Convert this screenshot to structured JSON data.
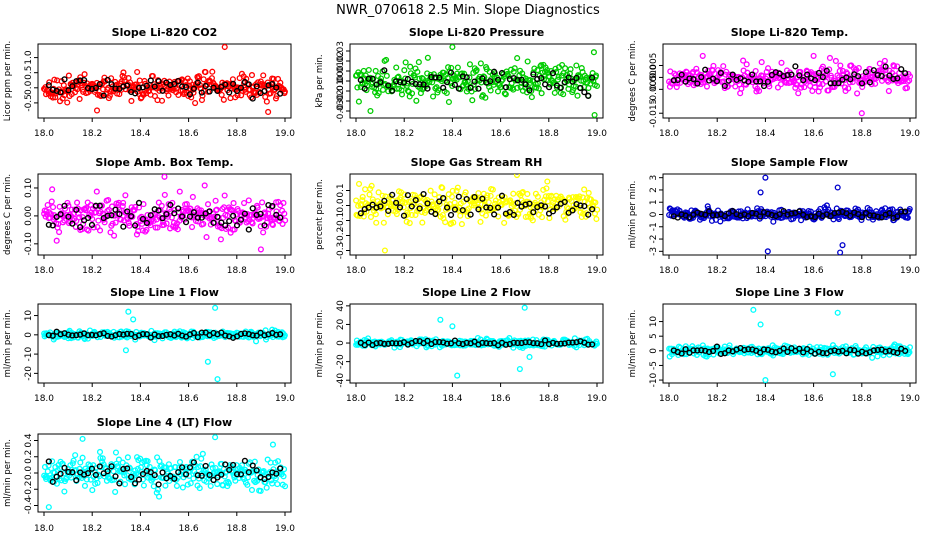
{
  "main_title": "NWR_070618  2.5 Min. Slope Diagnostics",
  "chart_data": [
    {
      "type": "scatter",
      "title": "Slope Li-820 CO2",
      "ylabel": "Licor ppm per min.",
      "xlim": [
        18.0,
        19.0
      ],
      "xticks": [
        "18.0",
        "18.2",
        "18.4",
        "18.6",
        "18.8",
        "19.0"
      ],
      "ylim": [
        -1.0,
        1.45
      ],
      "yticks": [
        {
          "v": -0.5,
          "label": "-0.5"
        },
        {
          "v": 0.0,
          "label": "0.0"
        },
        {
          "v": 0.5,
          "label": "0.5"
        },
        {
          "v": 1.0,
          "label": "1.0"
        }
      ],
      "main_color": "#ff0000",
      "black_color": "#000000",
      "spread": 0.3,
      "spikes": [
        [
          18.75,
          1.35
        ],
        [
          18.93,
          -0.8
        ],
        [
          18.22,
          -0.75
        ]
      ],
      "main_points": [],
      "black_points": []
    },
    {
      "type": "scatter",
      "title": "Slope Li-820 Pressure",
      "ylabel": "kPa per min.",
      "xlim": [
        18.0,
        19.0
      ],
      "xticks": [
        "18.0",
        "18.2",
        "18.4",
        "18.6",
        "18.8",
        "19.0"
      ],
      "ylim": [
        -0.037,
        0.037
      ],
      "yticks": [
        {
          "v": -0.03,
          "label": "-0.03"
        },
        {
          "v": -0.02,
          "label": "-0.02"
        },
        {
          "v": -0.01,
          "label": "-0.01"
        },
        {
          "v": 0.0,
          "label": "0.00"
        },
        {
          "v": 0.01,
          "label": "0.01"
        },
        {
          "v": 0.02,
          "label": "0.02"
        },
        {
          "v": 0.03,
          "label": "0.03"
        }
      ],
      "main_color": "#00cc00",
      "black_color": "#000000",
      "spread": 0.012,
      "spikes": [
        [
          18.4,
          0.034
        ],
        [
          18.99,
          -0.034
        ],
        [
          18.06,
          -0.03
        ]
      ],
      "main_points": [],
      "black_points": []
    },
    {
      "type": "scatter",
      "title": "Slope Li-820 Temp.",
      "ylabel": "degrees C per min.",
      "xlim": [
        18.0,
        19.0
      ],
      "xticks": [
        "18.0",
        "18.2",
        "18.4",
        "18.6",
        "18.8",
        "19.0"
      ],
      "ylim": [
        -0.017,
        0.014
      ],
      "yticks": [
        {
          "v": -0.015,
          "label": "-0.015"
        },
        {
          "v": -0.005,
          "label": "-0.005"
        },
        {
          "v": 0.0,
          "label": "0.000"
        },
        {
          "v": 0.005,
          "label": "0.005"
        }
      ],
      "main_color": "#ff00ff",
      "black_color": "#000000",
      "spread": 0.004,
      "spikes": [
        [
          18.8,
          -0.015
        ],
        [
          18.14,
          0.009
        ],
        [
          18.6,
          0.009
        ]
      ],
      "main_points": [],
      "black_points": []
    },
    {
      "type": "scatter",
      "title": "Slope Amb. Box Temp.",
      "ylabel": "degrees C per min.",
      "xlim": [
        18.0,
        19.0
      ],
      "xticks": [
        "18.0",
        "18.2",
        "18.4",
        "18.6",
        "18.8",
        "19.0"
      ],
      "ylim": [
        -0.14,
        0.15
      ],
      "yticks": [
        {
          "v": -0.1,
          "label": "-0.10"
        },
        {
          "v": 0.0,
          "label": "0.00"
        },
        {
          "v": 0.1,
          "label": "0.10"
        }
      ],
      "main_color": "#ff00ff",
      "black_color": "#000000",
      "spread": 0.05,
      "spikes": [
        [
          18.5,
          0.14
        ],
        [
          18.9,
          -0.12
        ]
      ],
      "main_points": [],
      "black_points": []
    },
    {
      "type": "scatter",
      "title": "Slope Gas Stream RH",
      "ylabel": "percent per min.",
      "xlim": [
        18.0,
        19.0
      ],
      "xticks": [
        "18.0",
        "18.2",
        "18.4",
        "18.6",
        "18.8",
        "19.0"
      ],
      "ylim": [
        -0.33,
        0.21
      ],
      "yticks": [
        {
          "v": -0.3,
          "label": "-0.3"
        },
        {
          "v": -0.2,
          "label": "-0.2"
        },
        {
          "v": -0.1,
          "label": "-0.1"
        },
        {
          "v": 0.0,
          "label": "0.0"
        },
        {
          "v": 0.1,
          "label": "0.1"
        }
      ],
      "main_color": "#ffff00",
      "black_color": "#000000",
      "spread": 0.08,
      "spikes": [
        [
          18.12,
          -0.3
        ]
      ],
      "main_points": [],
      "black_points": []
    },
    {
      "type": "scatter",
      "title": "Slope Sample Flow",
      "ylabel": "ml/min per min.",
      "xlim": [
        18.0,
        19.0
      ],
      "xticks": [
        "18.0",
        "18.2",
        "18.4",
        "18.6",
        "18.8",
        "19.0"
      ],
      "ylim": [
        -3.3,
        3.3
      ],
      "yticks": [
        {
          "v": -3,
          "label": "-3"
        },
        {
          "v": -2,
          "label": "-2"
        },
        {
          "v": -1,
          "label": "-1"
        },
        {
          "v": 0,
          "label": "0"
        },
        {
          "v": 1,
          "label": "1"
        },
        {
          "v": 2,
          "label": "2"
        },
        {
          "v": 3,
          "label": "3"
        }
      ],
      "main_color": "#0000cc",
      "black_color": "#000000",
      "spread": 0.35,
      "spikes": [
        [
          18.4,
          3.0
        ],
        [
          18.41,
          -3.0
        ],
        [
          18.71,
          -3.1
        ],
        [
          18.7,
          2.2
        ],
        [
          18.38,
          1.8
        ],
        [
          18.72,
          -2.5
        ]
      ],
      "main_points": [],
      "black_points": []
    },
    {
      "type": "scatter",
      "title": "Slope Line 1 Flow",
      "ylabel": "ml/min per min.",
      "xlim": [
        18.0,
        19.0
      ],
      "xticks": [
        "18.0",
        "18.2",
        "18.4",
        "18.6",
        "18.8",
        "19.0"
      ],
      "ylim": [
        -25,
        16
      ],
      "yticks": [
        {
          "v": -20,
          "label": "-20"
        },
        {
          "v": -10,
          "label": "-10"
        },
        {
          "v": 0,
          "label": "0"
        },
        {
          "v": 10,
          "label": "10"
        }
      ],
      "main_color": "#00ffff",
      "black_color": "#000000",
      "spread": 1.5,
      "spikes": [
        [
          18.35,
          12
        ],
        [
          18.71,
          14
        ],
        [
          18.72,
          -23
        ],
        [
          18.34,
          -8
        ],
        [
          18.68,
          -14
        ],
        [
          18.37,
          8
        ]
      ],
      "main_points": [],
      "black_points": []
    },
    {
      "type": "scatter",
      "title": "Slope Line 2 Flow",
      "ylabel": "ml/min per min.",
      "xlim": [
        18.0,
        19.0
      ],
      "xticks": [
        "18.0",
        "18.2",
        "18.4",
        "18.6",
        "18.8",
        "19.0"
      ],
      "ylim": [
        -43,
        42
      ],
      "yticks": [
        {
          "v": -40,
          "label": "-40"
        },
        {
          "v": -20,
          "label": "-20"
        },
        {
          "v": 0,
          "label": "0"
        },
        {
          "v": 20,
          "label": "20"
        },
        {
          "v": 40,
          "label": "40"
        }
      ],
      "main_color": "#00ffff",
      "black_color": "#000000",
      "spread": 3,
      "spikes": [
        [
          18.35,
          25
        ],
        [
          18.42,
          -35
        ],
        [
          18.7,
          38
        ],
        [
          18.68,
          -28
        ],
        [
          18.4,
          18
        ],
        [
          18.72,
          -15
        ]
      ],
      "main_points": [],
      "black_points": []
    },
    {
      "type": "scatter",
      "title": "Slope Line 3 Flow",
      "ylabel": "ml/min per min.",
      "xlim": [
        18.0,
        19.0
      ],
      "xticks": [
        "18.0",
        "18.2",
        "18.4",
        "18.6",
        "18.8",
        "19.0"
      ],
      "ylim": [
        -11,
        16
      ],
      "yticks": [
        {
          "v": -10,
          "label": "-10"
        },
        {
          "v": -5,
          "label": "-5"
        },
        {
          "v": 0,
          "label": "0"
        },
        {
          "v": 5,
          "label": "5"
        },
        {
          "v": 10,
          "label": "10"
        }
      ],
      "main_color": "#00ffff",
      "black_color": "#000000",
      "spread": 1.2,
      "spikes": [
        [
          18.35,
          14
        ],
        [
          18.4,
          -10
        ],
        [
          18.7,
          13
        ],
        [
          18.68,
          -8
        ],
        [
          18.38,
          9
        ]
      ],
      "main_points": [],
      "black_points": []
    },
    {
      "type": "scatter",
      "title": "Slope Line 4 (LT) Flow",
      "ylabel": "ml/min per min.",
      "xlim": [
        18.0,
        19.0
      ],
      "xticks": [
        "18.0",
        "18.2",
        "18.4",
        "18.6",
        "18.8",
        "19.0"
      ],
      "ylim": [
        -0.48,
        0.48
      ],
      "yticks": [
        {
          "v": -0.4,
          "label": "-0.4"
        },
        {
          "v": -0.2,
          "label": "-0.2"
        },
        {
          "v": 0.0,
          "label": "0.0"
        },
        {
          "v": 0.2,
          "label": "0.2"
        },
        {
          "v": 0.4,
          "label": "0.4"
        }
      ],
      "main_color": "#00ffff",
      "black_color": "#000000",
      "spread": 0.15,
      "spikes": [
        [
          18.16,
          0.42
        ],
        [
          18.02,
          -0.42
        ],
        [
          18.71,
          0.44
        ],
        [
          18.95,
          0.35
        ]
      ],
      "main_points": [],
      "black_points": []
    }
  ]
}
